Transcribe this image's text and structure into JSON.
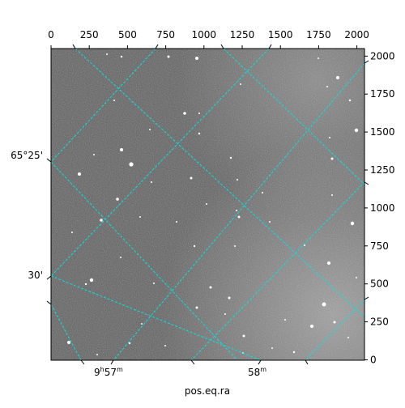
{
  "xlabel": "pos.eq.ra",
  "top_axis": {
    "ticks": [
      "0",
      "250",
      "500",
      "750",
      "1000",
      "1250",
      "1500",
      "1750",
      "2000"
    ]
  },
  "right_axis": {
    "ticks": [
      "0",
      "250",
      "500",
      "750",
      "1000",
      "1250",
      "1500",
      "1750",
      "2000"
    ]
  },
  "ra_labels": {
    "first": {
      "h": "9",
      "h_unit": "h",
      "m": "57",
      "m_unit": "m"
    },
    "second": {
      "m": "58",
      "m_unit": "m"
    }
  },
  "dec_labels": {
    "first": "65°25'",
    "second": "30'"
  },
  "colors": {
    "grid": "#00e5e5",
    "frame": "#000000"
  }
}
